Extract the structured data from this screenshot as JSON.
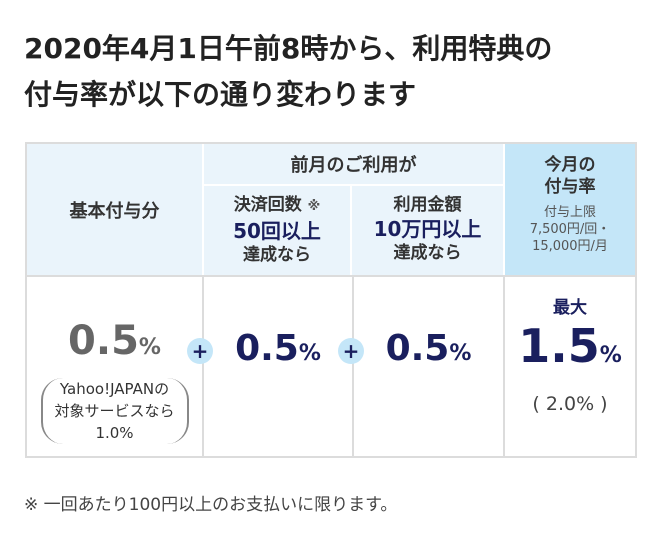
{
  "headline": {
    "line1": "2020年4月1日午前8時から、利用特典の",
    "line2": "付与率が以下の通り変わります"
  },
  "table": {
    "base_header": "基本付与分",
    "group_header": "前月のご利用が",
    "sub1": {
      "top": "決済回数",
      "note": "※",
      "big": "50回以上",
      "bottom": "達成なら"
    },
    "sub2": {
      "top": "利用金額",
      "big": "10万円以上",
      "bottom": "達成なら"
    },
    "this_month": {
      "title_line1": "今月の",
      "title_line2": "付与率",
      "limit_line1": "付与上限",
      "limit_line2": "7,500円/回・",
      "limit_line3": "15,000円/月"
    },
    "base_value": "0.5",
    "base_note_line1": "Yahoo!JAPANの",
    "base_note_line2": "対象サービスなら",
    "base_note_line3": "1.0%",
    "value1": "0.5",
    "value2": "0.5",
    "max_label": "最大",
    "max_value": "1.5",
    "alt_value": "( 2.0% )",
    "percent": "%",
    "plus": "+"
  },
  "footnote": "※ 一回あたり100円以上のお支払いに限ります。",
  "colors": {
    "navy": "#1a1f5e",
    "header_blue": "#c4e6f8",
    "header_pale": "#eaf4fb",
    "border": "#dcdcdc"
  }
}
